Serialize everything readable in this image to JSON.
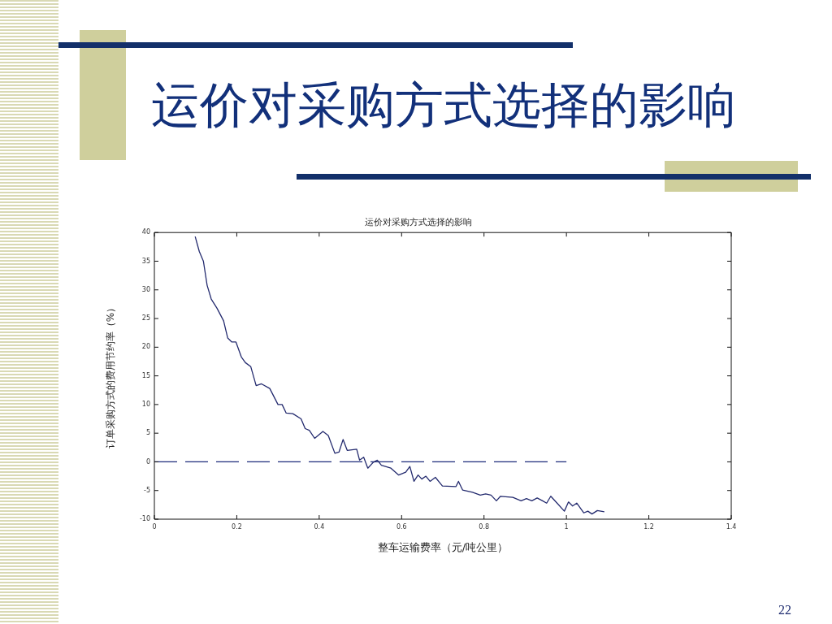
{
  "chart_data": {
    "type": "line",
    "title": "运价对采购方式选择的影响",
    "subtitle": "运价对采购方式选择的影响",
    "xlabel": "整车运输费率（元/吨公里）",
    "ylabel": "订单采购方式的费用节约率（%）",
    "annotations": [
      "22"
    ],
    "xlim": [
      0,
      1.4
    ],
    "xticks": [
      0,
      0.2,
      0.4,
      0.6,
      0.8,
      1,
      1.2,
      1.4
    ],
    "ylim": [
      -10,
      40
    ],
    "yticks": [
      -10,
      -5,
      0,
      5,
      10,
      15,
      20,
      25,
      30,
      35,
      40
    ],
    "series": [
      {
        "color": "#232a6e",
        "x": [
          0.099,
          0.109,
          0.119,
          0.128,
          0.138,
          0.152,
          0.168,
          0.178,
          0.188,
          0.198,
          0.211,
          0.221,
          0.234,
          0.247,
          0.26,
          0.28,
          0.3,
          0.31,
          0.32,
          0.336,
          0.356,
          0.366,
          0.376,
          0.389,
          0.409,
          0.422,
          0.438,
          0.448,
          0.458,
          0.468,
          0.491,
          0.498,
          0.508,
          0.518,
          0.531,
          0.541,
          0.551,
          0.574,
          0.593,
          0.61,
          0.62,
          0.63,
          0.64,
          0.649,
          0.659,
          0.669,
          0.682,
          0.699,
          0.732,
          0.738,
          0.748,
          0.772,
          0.791,
          0.804,
          0.817,
          0.83,
          0.84,
          0.87,
          0.89,
          0.903,
          0.916,
          0.929,
          0.942,
          0.952,
          0.962,
          0.976,
          0.995,
          1.005,
          1.015,
          1.025,
          1.042,
          1.052,
          1.062,
          1.075,
          1.092
        ],
        "values": [
          39.3,
          36.7,
          35.0,
          30.8,
          28.4,
          26.8,
          24.6,
          21.6,
          20.9,
          20.9,
          18.3,
          17.3,
          16.6,
          13.3,
          13.6,
          12.8,
          10.0,
          10.0,
          8.5,
          8.4,
          7.5,
          5.8,
          5.5,
          4.1,
          5.3,
          4.6,
          1.5,
          1.7,
          3.9,
          2.0,
          2.2,
          0.3,
          0.8,
          -1.1,
          -0.1,
          0.3,
          -0.6,
          -1.1,
          -2.3,
          -1.8,
          -0.8,
          -3.4,
          -2.3,
          -3.0,
          -2.5,
          -3.4,
          -2.7,
          -4.2,
          -4.3,
          -3.4,
          -4.9,
          -5.3,
          -5.8,
          -5.6,
          -5.8,
          -6.8,
          -6.0,
          -6.2,
          -6.8,
          -6.4,
          -6.8,
          -6.3,
          -6.8,
          -7.2,
          -6.0,
          -7.1,
          -8.6,
          -7.0,
          -7.7,
          -7.2,
          -8.9,
          -8.6,
          -9.1,
          -8.5,
          -8.7
        ]
      },
      {
        "type": "line",
        "color": "#1c2a7a",
        "line_style": "dashed",
        "x": [
          0,
          1
        ],
        "values": [
          0,
          0
        ]
      }
    ]
  }
}
